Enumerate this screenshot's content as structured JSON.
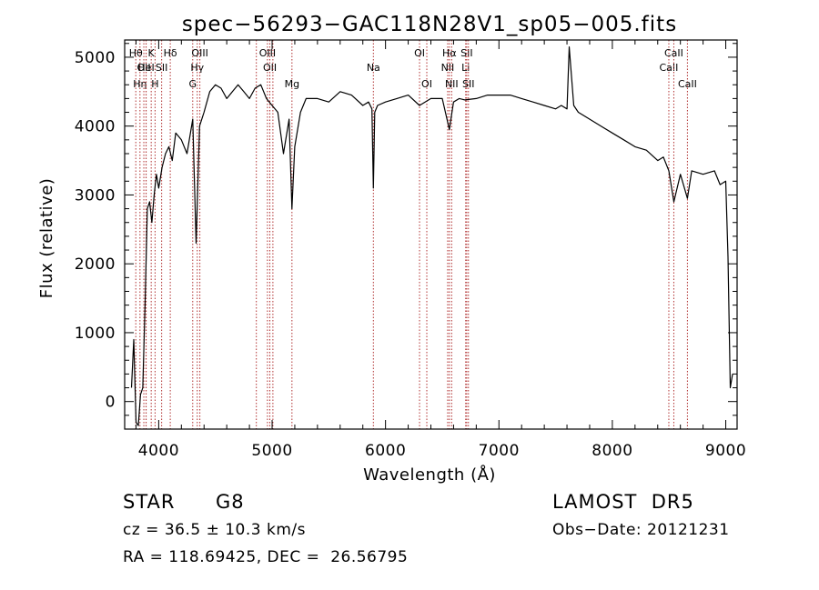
{
  "chart_data": {
    "type": "line",
    "title": "spec−56293−GAC118N28V1_sp05−005.fits",
    "xlabel": "Wavelength (Å)",
    "ylabel": "Flux (relative)",
    "xlim": [
      3700,
      9100
    ],
    "ylim": [
      -400,
      5250
    ],
    "xticks": [
      4000,
      5000,
      6000,
      7000,
      8000,
      9000
    ],
    "xtick_labels": [
      "4000",
      "5000",
      "6000",
      "7000",
      "8000",
      "9000"
    ],
    "yticks": [
      0,
      1000,
      2000,
      3000,
      4000,
      5000
    ],
    "ytick_labels": [
      "0",
      "1000",
      "2000",
      "3000",
      "4000",
      "5000"
    ],
    "line_color": "#000000",
    "marker_color": "#b03030",
    "series": [
      {
        "x": [
          3760,
          3780,
          3800,
          3820,
          3840,
          3860,
          3880,
          3900,
          3920,
          3940,
          3960,
          3980,
          4000,
          4030,
          4060,
          4090,
          4120,
          4150,
          4200,
          4250,
          4300,
          4330,
          4360,
          4400,
          4450,
          4500,
          4550,
          4600,
          4650,
          4700,
          4750,
          4800,
          4850,
          4900,
          4950,
          5000,
          5050,
          5100,
          5150,
          5175,
          5200,
          5250,
          5300,
          5400,
          5500,
          5600,
          5700,
          5800,
          5850,
          5880,
          5893,
          5905,
          5930,
          6000,
          6100,
          6200,
          6300,
          6400,
          6500,
          6563,
          6600,
          6650,
          6700,
          6800,
          6900,
          7000,
          7100,
          7200,
          7300,
          7400,
          7500,
          7550,
          7600,
          7620,
          7660,
          7700,
          7800,
          7900,
          8000,
          8100,
          8200,
          8300,
          8400,
          8450,
          8498,
          8542,
          8600,
          8662,
          8700,
          8800,
          8900,
          8950,
          9000,
          9020,
          9040,
          9060
        ],
        "y": [
          200,
          900,
          -300,
          -350,
          100,
          200,
          1400,
          2800,
          2900,
          2600,
          3000,
          3300,
          3100,
          3400,
          3600,
          3700,
          3500,
          3900,
          3800,
          3600,
          4100,
          2300,
          4000,
          4200,
          4500,
          4600,
          4550,
          4400,
          4500,
          4600,
          4500,
          4400,
          4550,
          4600,
          4400,
          4300,
          4200,
          3600,
          4100,
          2800,
          3700,
          4200,
          4400,
          4400,
          4350,
          4500,
          4450,
          4300,
          4350,
          4250,
          3100,
          4200,
          4300,
          4350,
          4400,
          4450,
          4300,
          4400,
          4400,
          3950,
          4350,
          4400,
          4380,
          4400,
          4450,
          4450,
          4450,
          4400,
          4350,
          4300,
          4250,
          4300,
          4250,
          5150,
          4300,
          4200,
          4100,
          4000,
          3900,
          3800,
          3700,
          3650,
          3500,
          3550,
          3350,
          2900,
          3300,
          2950,
          3350,
          3300,
          3350,
          3150,
          3200,
          2100,
          200,
          400
        ]
      }
    ],
    "line_markers": [
      {
        "wavelength": 3798,
        "label": "Hθ",
        "row": 1
      },
      {
        "wavelength": 3835,
        "label": "Hη",
        "row": 3
      },
      {
        "wavelength": 3869,
        "label": "OII",
        "row": 2
      },
      {
        "wavelength": 3889,
        "label": "",
        "row": 0
      },
      {
        "wavelength": 3934,
        "label": "K",
        "row": 1
      },
      {
        "wavelength": 3889,
        "label": "HeI",
        "row": 2
      },
      {
        "wavelength": 3968,
        "label": "H",
        "row": 3
      },
      {
        "wavelength": 4026,
        "label": "SII",
        "row": 2
      },
      {
        "wavelength": 4102,
        "label": "Hδ",
        "row": 1
      },
      {
        "wavelength": 4300,
        "label": "G",
        "row": 3
      },
      {
        "wavelength": 4340,
        "label": "Hγ",
        "row": 2
      },
      {
        "wavelength": 4363,
        "label": "OIII",
        "row": 1
      },
      {
        "wavelength": 4861,
        "label": "",
        "row": 0
      },
      {
        "wavelength": 4959,
        "label": "OIII",
        "row": 1
      },
      {
        "wavelength": 4980,
        "label": "OII",
        "row": 2
      },
      {
        "wavelength": 5007,
        "label": "",
        "row": 0
      },
      {
        "wavelength": 5175,
        "label": "Mg",
        "row": 3
      },
      {
        "wavelength": 5893,
        "label": "Na",
        "row": 2
      },
      {
        "wavelength": 6300,
        "label": "OI",
        "row": 1
      },
      {
        "wavelength": 6364,
        "label": "OI",
        "row": 3
      },
      {
        "wavelength": 6548,
        "label": "NII",
        "row": 2
      },
      {
        "wavelength": 6563,
        "label": "Hα",
        "row": 1
      },
      {
        "wavelength": 6583,
        "label": "NII",
        "row": 3
      },
      {
        "wavelength": 6707,
        "label": "Li",
        "row": 2
      },
      {
        "wavelength": 6716,
        "label": "SII",
        "row": 1
      },
      {
        "wavelength": 6731,
        "label": "SII",
        "row": 3
      },
      {
        "wavelength": 8498,
        "label": "CaII",
        "row": 2
      },
      {
        "wavelength": 8542,
        "label": "CaII",
        "row": 1
      },
      {
        "wavelength": 8662,
        "label": "CaII",
        "row": 3
      }
    ]
  },
  "info": {
    "object_class": "STAR",
    "subclass": "G8",
    "survey": "LAMOST  DR5",
    "redshift_text": "cz = 36.5 ± 10.3 km/s",
    "obs_date_text": "Obs−Date: 20121231",
    "coords_text": "RA = 118.69425, DEC =  26.56795"
  }
}
